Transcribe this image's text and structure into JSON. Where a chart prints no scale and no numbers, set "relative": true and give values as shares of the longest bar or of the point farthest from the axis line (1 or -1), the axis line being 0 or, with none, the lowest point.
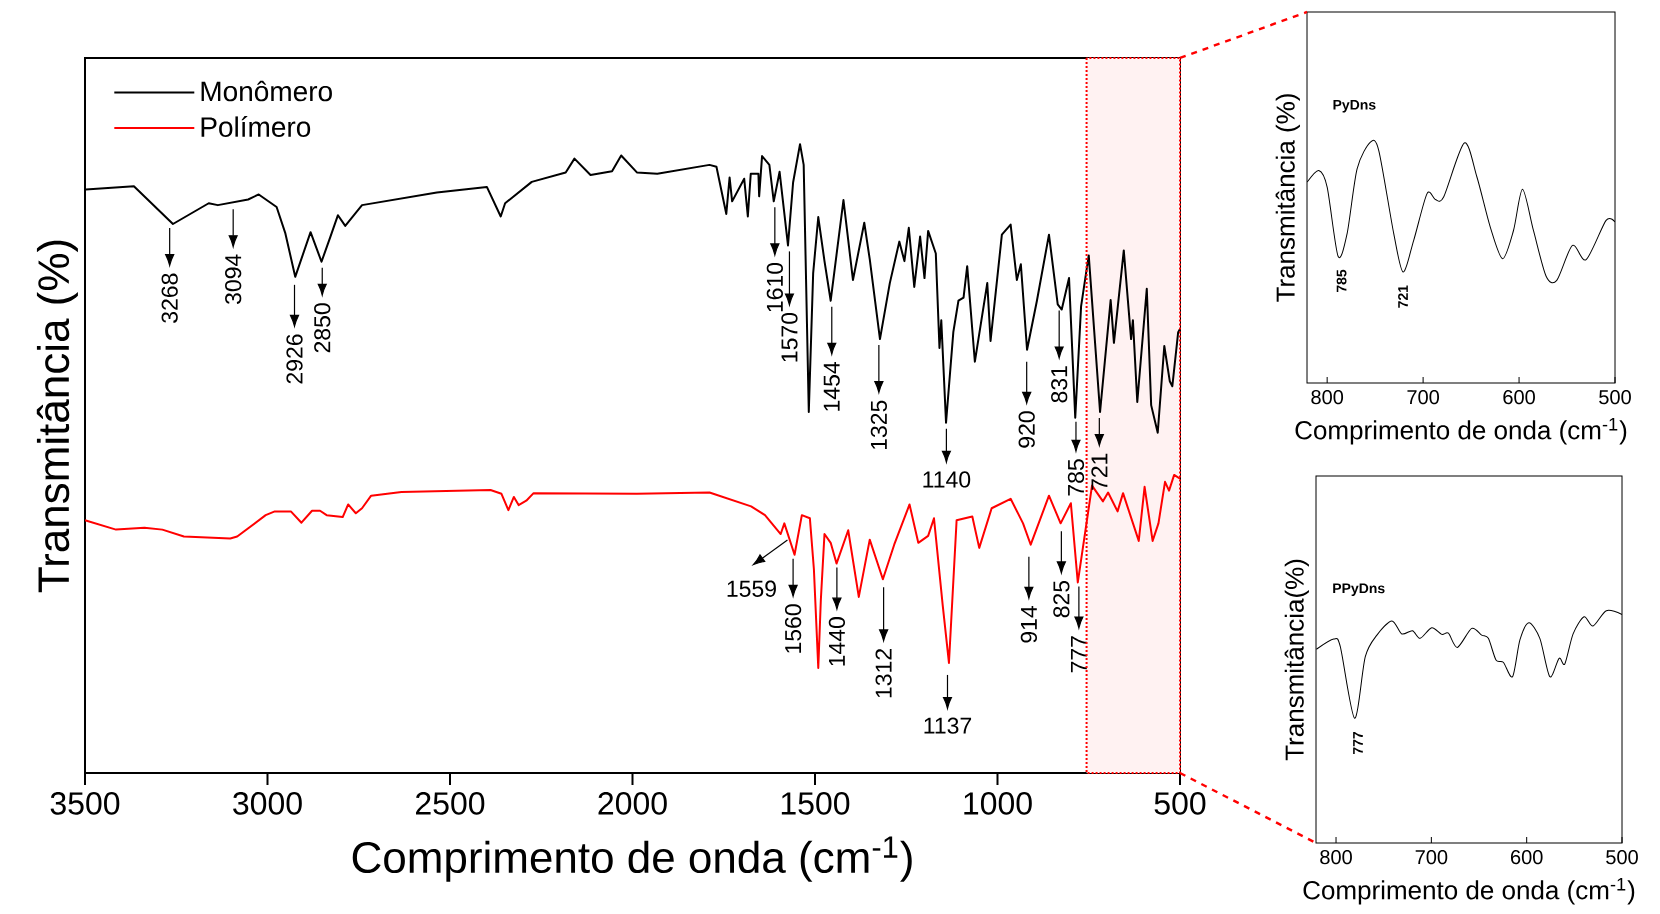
{
  "chart_data": [
    {
      "type": "line",
      "xlabel": "Comprimento de onda (cm$^{-1}$)",
      "ylabel": "Transmitância (%)",
      "xlim": [
        3500,
        500
      ],
      "xticks": [
        3500,
        3000,
        2500,
        2000,
        1500,
        1000,
        500
      ],
      "relative": true,
      "legend": "top left",
      "series": [
        {
          "name": "Monômero",
          "color": "#000000",
          "x": [
            3498,
            3366,
            3259,
            3161,
            3136,
            3053,
            3024,
            2975,
            2951,
            2924,
            2882,
            2852,
            2828,
            2807,
            2787,
            2741,
            2536,
            2399,
            2361,
            2349,
            2276,
            2183,
            2159,
            2115,
            2056,
            2031,
            1988,
            1932,
            1789,
            1770,
            1743,
            1734,
            1727,
            1694,
            1684,
            1676,
            1655,
            1653,
            1645,
            1625,
            1613,
            1597,
            1574,
            1560,
            1541,
            1531,
            1517,
            1505,
            1491,
            1474,
            1457,
            1422,
            1396,
            1365,
            1350,
            1322,
            1295,
            1269,
            1255,
            1243,
            1228,
            1212,
            1200,
            1190,
            1169,
            1159,
            1154,
            1141,
            1121,
            1107,
            1093,
            1083,
            1062,
            1028,
            1019,
            988,
            964,
            947,
            936,
            919,
            892,
            859,
            835,
            824,
            804,
            787,
            771,
            750,
            719,
            690,
            681,
            654,
            634,
            629,
            617,
            591,
            579,
            561,
            543,
            528,
            521,
            505,
            500
          ],
          "values": [
            0.928,
            0.933,
            0.873,
            0.906,
            0.903,
            0.912,
            0.92,
            0.9,
            0.858,
            0.789,
            0.86,
            0.813,
            0.852,
            0.887,
            0.87,
            0.903,
            0.923,
            0.932,
            0.885,
            0.906,
            0.94,
            0.955,
            0.977,
            0.951,
            0.957,
            0.982,
            0.955,
            0.953,
            0.967,
            0.964,
            0.889,
            0.947,
            0.909,
            0.945,
            0.885,
            0.953,
            0.953,
            0.917,
            0.981,
            0.967,
            0.909,
            0.956,
            0.839,
            0.939,
            1.0,
            0.967,
            0.574,
            0.795,
            0.884,
            0.814,
            0.751,
            0.911,
            0.784,
            0.875,
            0.817,
            0.69,
            0.779,
            0.845,
            0.814,
            0.867,
            0.773,
            0.853,
            0.787,
            0.862,
            0.826,
            0.676,
            0.72,
            0.557,
            0.701,
            0.751,
            0.756,
            0.806,
            0.654,
            0.779,
            0.687,
            0.856,
            0.872,
            0.784,
            0.809,
            0.673,
            0.751,
            0.856,
            0.745,
            0.737,
            0.787,
            0.565,
            0.742,
            0.823,
            0.574,
            0.752,
            0.684,
            0.831,
            0.69,
            0.72,
            0.59,
            0.77,
            0.585,
            0.541,
            0.679,
            0.623,
            0.615,
            0.701,
            0.706
          ]
        },
        {
          "name": "Polímero",
          "color": "#ff0000",
          "x": [
            3500,
            3415,
            3337,
            3288,
            3229,
            3102,
            3083,
            3005,
            2980,
            2936,
            2907,
            2878,
            2856,
            2838,
            2794,
            2779,
            2758,
            2741,
            2716,
            2633,
            2389,
            2359,
            2340,
            2325,
            2312,
            2291,
            2271,
            1988,
            1789,
            1732,
            1675,
            1637,
            1594,
            1584,
            1556,
            1536,
            1514,
            1503,
            1491,
            1484,
            1474,
            1457,
            1441,
            1409,
            1380,
            1350,
            1314,
            1283,
            1241,
            1217,
            1190,
            1174,
            1150,
            1133,
            1112,
            1069,
            1050,
            1016,
            964,
            930,
            909,
            859,
            827,
            799,
            780,
            741,
            711,
            697,
            671,
            656,
            613,
            597,
            575,
            559,
            541,
            530,
            516,
            500
          ],
          "values": [
            0.402,
            0.387,
            0.39,
            0.387,
            0.376,
            0.373,
            0.376,
            0.41,
            0.416,
            0.416,
            0.398,
            0.417,
            0.417,
            0.41,
            0.407,
            0.427,
            0.413,
            0.421,
            0.441,
            0.447,
            0.45,
            0.444,
            0.418,
            0.439,
            0.426,
            0.433,
            0.445,
            0.444,
            0.446,
            0.435,
            0.424,
            0.41,
            0.38,
            0.397,
            0.347,
            0.41,
            0.405,
            0.324,
            0.167,
            0.275,
            0.38,
            0.366,
            0.333,
            0.386,
            0.28,
            0.371,
            0.308,
            0.363,
            0.427,
            0.366,
            0.377,
            0.405,
            0.266,
            0.175,
            0.402,
            0.408,
            0.358,
            0.421,
            0.436,
            0.397,
            0.363,
            0.441,
            0.397,
            0.429,
            0.303,
            0.457,
            0.432,
            0.446,
            0.416,
            0.445,
            0.369,
            0.455,
            0.369,
            0.397,
            0.463,
            0.449,
            0.474,
            0.468
          ]
        }
      ],
      "annotations": [
        {
          "text": "3268",
          "x": 3268,
          "y": 0.873
        },
        {
          "text": "3094",
          "x": 3094,
          "y": 0.903
        },
        {
          "text": "2926",
          "x": 2926,
          "y": 0.789
        },
        {
          "text": "2850",
          "x": 2850,
          "y": 0.813
        },
        {
          "text": "1610",
          "x": 1610,
          "y": 0.909
        },
        {
          "text": "1570",
          "x": 1570,
          "y": 0.839
        },
        {
          "text": "1454",
          "x": 1454,
          "y": 0.751
        },
        {
          "text": "1325",
          "x": 1325,
          "y": 0.69
        },
        {
          "text": "1140",
          "x": 1140,
          "y": 0.557
        },
        {
          "text": "920",
          "x": 920,
          "y": 0.673
        },
        {
          "text": "831",
          "x": 831,
          "y": 0.745
        },
        {
          "text": "785",
          "x": 785,
          "y": 0.565
        },
        {
          "text": "721",
          "x": 721,
          "y": 0.574
        },
        {
          "text": "1559",
          "x": 1559,
          "y": 0.38
        },
        {
          "text": "1560",
          "x": 1560,
          "y": 0.347
        },
        {
          "text": "1440",
          "x": 1440,
          "y": 0.333
        },
        {
          "text": "1312",
          "x": 1312,
          "y": 0.308
        },
        {
          "text": "1137",
          "x": 1137,
          "y": 0.175
        },
        {
          "text": "914",
          "x": 914,
          "y": 0.363
        },
        {
          "text": "825",
          "x": 825,
          "y": 0.397
        },
        {
          "text": "777",
          "x": 777,
          "y": 0.303
        }
      ],
      "bands": [
        {
          "axis": "x",
          "from": 756,
          "to": 500,
          "color": "#fff2f2"
        }
      ]
    },
    {
      "type": "line",
      "xlabel": "Comprimento de onda (cm$^{-1}$)",
      "ylabel": "Transmitância (%)",
      "xlim": [
        821,
        500
      ],
      "xticks": [
        800,
        700,
        600,
        500
      ],
      "relative": true,
      "series": [
        {
          "color": "#000000",
          "x": [
            820.8,
            808.7,
            800,
            788.6,
            779.2,
            768.8,
            754.9,
            746.2,
            730.6,
            720.9,
            709.8,
            695.9,
            687.3,
            678.6,
            657.1,
            643.9,
            630,
            617.2,
            605.8,
            596.4,
            585,
            571.8,
            560.7,
            544.4,
            530.1,
            509.3,
            500
          ],
          "values": [
            0.834,
            0.882,
            0.813,
            0.526,
            0.62,
            0.889,
            1.0,
            0.965,
            0.62,
            0.461,
            0.592,
            0.786,
            0.762,
            0.772,
            0.996,
            0.855,
            0.647,
            0.516,
            0.633,
            0.804,
            0.633,
            0.443,
            0.426,
            0.571,
            0.512,
            0.675,
            0.668
          ]
        }
      ],
      "annotations": [
        "**PyDns**",
        {
          "text": "785",
          "x": 785,
          "y": 0.526
        },
        {
          "text": "721",
          "x": 721,
          "y": 0.461
        }
      ]
    },
    {
      "type": "line",
      "xlabel": "Comprimento de onda (cm$^{-1}$)",
      "ylabel": "Transmitância(%)",
      "xlim": [
        821,
        500
      ],
      "xticks": [
        800,
        700,
        600,
        500
      ],
      "relative": true,
      "series": [
        {
          "color": "#000000",
          "x": [
            820.6,
            802.4,
            795.5,
            780.5,
            769.3,
            757.1,
            741.4,
            731,
            719.8,
            711.8,
            699.6,
            689.1,
            682.1,
            672.7,
            657.7,
            647.2,
            640.2,
            632.2,
            624.5,
            614.8,
            607.1,
            597.7,
            586.2,
            575.7,
            566,
            560,
            551.3,
            539.8,
            530.4,
            516.4,
            500
          ],
          "values": [
            0.834,
            0.878,
            0.845,
            0.537,
            0.802,
            0.895,
            0.956,
            0.9,
            0.914,
            0.881,
            0.927,
            0.898,
            0.903,
            0.842,
            0.924,
            0.895,
            0.881,
            0.788,
            0.778,
            0.716,
            0.874,
            0.948,
            0.881,
            0.716,
            0.795,
            0.771,
            0.9,
            0.974,
            0.934,
            1.0,
            0.984
          ]
        }
      ],
      "annotations": [
        "**PPyDns**",
        {
          "text": "777",
          "x": 777,
          "y": 0.537
        }
      ]
    }
  ]
}
